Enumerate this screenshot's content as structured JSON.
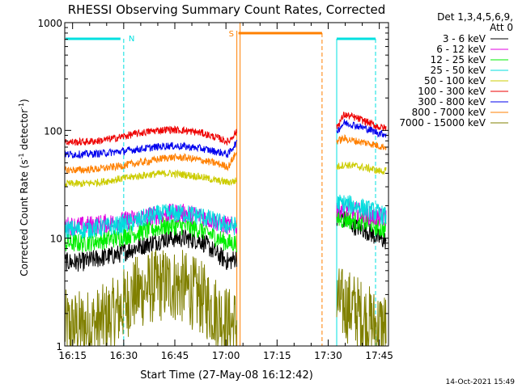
{
  "chart_data": {
    "type": "line",
    "title": "RHESSI Observing Summary Count Rates, Corrected",
    "xlabel": "Start Time (27-May-08 16:12:42)",
    "ylabel_main": "Corrected Count Rate (s",
    "ylabel_exp1": "-1",
    "ylabel_mid": " detector",
    "ylabel_exp2": "-1",
    "ylabel_end": ")",
    "yscale": "log",
    "ylim": [
      1,
      1000
    ],
    "xlim_minutes": [
      0,
      95
    ],
    "x_ticks": [
      {
        "m": 2.3,
        "label": "16:15"
      },
      {
        "m": 17.3,
        "label": "16:30"
      },
      {
        "m": 32.3,
        "label": "16:45"
      },
      {
        "m": 47.3,
        "label": "17:00"
      },
      {
        "m": 62.3,
        "label": "17:15"
      },
      {
        "m": 77.3,
        "label": "17:30"
      },
      {
        "m": 92.3,
        "label": "17:45"
      }
    ],
    "y_ticks": [
      {
        "v": 1,
        "label": "1"
      },
      {
        "v": 10,
        "label": "10"
      },
      {
        "v": 100,
        "label": "100"
      },
      {
        "v": 1000,
        "label": "1000"
      }
    ],
    "legend_header": [
      "Det 1,3,4,5,6,9,",
      "Att 0"
    ],
    "legend_position": "right",
    "gaps_minutes": [
      [
        50.5,
        79.8
      ]
    ],
    "series": [
      {
        "name": "3 - 6 keV",
        "color": "#000000",
        "x": [
          0,
          5,
          10,
          15,
          20,
          25,
          30,
          35,
          40,
          45,
          48,
          50,
          80,
          82,
          85,
          88,
          90,
          92,
          94
        ],
        "y": [
          6,
          6,
          6.5,
          7,
          8,
          9,
          10,
          10,
          9.5,
          7,
          6,
          6.5,
          16,
          15,
          13,
          12,
          11,
          10,
          9.5
        ]
      },
      {
        "name": "6 - 12 keV",
        "color": "#e000e0",
        "x": [
          0,
          5,
          10,
          15,
          20,
          25,
          30,
          35,
          40,
          45,
          48,
          50,
          80,
          82,
          85,
          88,
          90,
          92,
          94
        ],
        "y": [
          13,
          13,
          13.5,
          14,
          15,
          16,
          17,
          17,
          16,
          14,
          13,
          13,
          19,
          19,
          18,
          17,
          16,
          15.5,
          15.5
        ]
      },
      {
        "name": "12 - 25 keV",
        "color": "#00ee00",
        "x": [
          0,
          5,
          10,
          15,
          20,
          25,
          30,
          35,
          40,
          45,
          48,
          50,
          80,
          82,
          85,
          88,
          90,
          92,
          94
        ],
        "y": [
          9,
          9,
          9.5,
          10,
          11,
          12,
          13,
          13,
          12,
          10,
          9,
          9,
          15,
          15,
          14.5,
          14,
          13.5,
          12.5,
          12
        ]
      },
      {
        "name": "25 - 50 keV",
        "color": "#00dddd",
        "x": [
          0,
          5,
          10,
          15,
          20,
          25,
          30,
          35,
          40,
          45,
          48,
          50,
          80,
          82,
          85,
          88,
          90,
          92,
          94
        ],
        "y": [
          12,
          12,
          12.5,
          13,
          14,
          16,
          17,
          17,
          16,
          14,
          13,
          13,
          21,
          21,
          20,
          19,
          18,
          17,
          16
        ]
      },
      {
        "name": "50 - 100 keV",
        "color": "#cccc00",
        "x": [
          0,
          5,
          10,
          15,
          20,
          25,
          30,
          35,
          40,
          45,
          48,
          50,
          80,
          82,
          85,
          88,
          90,
          92,
          94
        ],
        "y": [
          32,
          32,
          33,
          35,
          37,
          39,
          40,
          39,
          37,
          34,
          33,
          34,
          46,
          48,
          47,
          45,
          44,
          42,
          42
        ]
      },
      {
        "name": "100 - 300 keV",
        "color": "#ee0000",
        "x": [
          0,
          5,
          10,
          15,
          20,
          25,
          30,
          35,
          40,
          45,
          48,
          50,
          80,
          82,
          85,
          88,
          90,
          92,
          94
        ],
        "y": [
          78,
          78,
          80,
          85,
          92,
          98,
          102,
          100,
          95,
          85,
          78,
          95,
          110,
          140,
          132,
          122,
          115,
          108,
          105
        ]
      },
      {
        "name": "300 - 800 keV",
        "color": "#0000ee",
        "x": [
          0,
          5,
          10,
          15,
          20,
          25,
          30,
          35,
          40,
          45,
          48,
          50,
          80,
          82,
          85,
          88,
          90,
          92,
          94
        ],
        "y": [
          60,
          60,
          61,
          63,
          66,
          69,
          72,
          71,
          68,
          63,
          60,
          75,
          100,
          118,
          112,
          105,
          100,
          95,
          92
        ]
      },
      {
        "name": "800 - 7000 keV",
        "color": "#ff8000",
        "x": [
          0,
          5,
          10,
          15,
          20,
          25,
          30,
          35,
          40,
          45,
          48,
          50,
          80,
          82,
          85,
          88,
          90,
          92,
          94
        ],
        "y": [
          43,
          43,
          44,
          46,
          49,
          52,
          56,
          56,
          53,
          49,
          46,
          60,
          80,
          84,
          80,
          77,
          75,
          72,
          70
        ]
      },
      {
        "name": "7000 - 15000 keV",
        "color": "#808000",
        "x": [
          0,
          5,
          10,
          15,
          20,
          25,
          30,
          35,
          40,
          45,
          48,
          50,
          80,
          82,
          85,
          88,
          90,
          92,
          94
        ],
        "y": [
          1.5,
          1.5,
          1.6,
          2,
          3,
          3.5,
          3.8,
          3.5,
          2.8,
          2,
          1.6,
          1.6,
          2.5,
          2.4,
          2.2,
          1.8,
          1.6,
          1.5,
          1.5
        ]
      }
    ],
    "annotations": {
      "n_label": "N",
      "s_label": "S",
      "night_intervals_minutes": [
        [
          0,
          17.3
        ],
        [
          79.8,
          95
        ]
      ],
      "saa_interval_minutes": [
        50.5,
        75.5
      ]
    }
  },
  "footer_timestamp": "14-Oct-2021 15:49"
}
